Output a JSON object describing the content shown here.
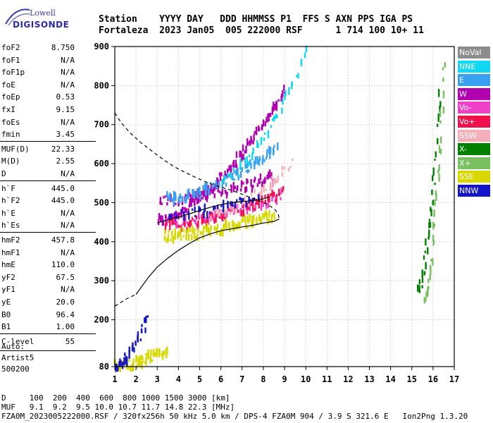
{
  "logo": {
    "line1": "Lowell",
    "line2": "DIGISONDE"
  },
  "header": {
    "labels": "Station    YYYY DAY   DDD HHMMSS P1  FFS S AXN PPS IGA PS",
    "values": "Fortaleza  2023 Jan05  005 222000 RSF      1 714 100 10+ 11"
  },
  "params": [
    {
      "label": "foF2",
      "value": "8.750"
    },
    {
      "label": "foF1",
      "value": "N/A"
    },
    {
      "label": "foF1p",
      "value": "N/A"
    },
    {
      "label": "foE",
      "value": "N/A"
    },
    {
      "label": "foEp",
      "value": "0.53"
    },
    {
      "label": "fxI",
      "value": "9.15"
    },
    {
      "label": "foEs",
      "value": "N/A"
    },
    {
      "label": "fmin",
      "value": "3.45"
    },
    {
      "label": "MUF(D)",
      "value": "22.33"
    },
    {
      "label": "M(D)",
      "value": "2.55"
    },
    {
      "label": "D",
      "value": "N/A"
    },
    {
      "label": "h`F",
      "value": "445.0"
    },
    {
      "label": "h`F2",
      "value": "445.0"
    },
    {
      "label": "h`E",
      "value": "N/A"
    },
    {
      "label": "h`Es",
      "value": "N/A"
    },
    {
      "label": "hmF2",
      "value": "457.8"
    },
    {
      "label": "hmF1",
      "value": "N/A"
    },
    {
      "label": "hmE",
      "value": "110.0"
    },
    {
      "label": "yF2",
      "value": "67.5"
    },
    {
      "label": "yF1",
      "value": "N/A"
    },
    {
      "label": "yE",
      "value": "20.0"
    },
    {
      "label": "B0",
      "value": "96.4"
    },
    {
      "label": "B1",
      "value": "1.00"
    },
    {
      "label": "C-level",
      "value": "55"
    }
  ],
  "auto": {
    "line1": "Auto:",
    "line2": "Artist5",
    "line3": "500200"
  },
  "footer": {
    "d_line": "D     100  200  400  600  800 1000 1500 3000 [km]",
    "muf_line": "MUF   9.1  9.2  9.5 10.0 10.7 11.7 14.8 22.3 [MHz]",
    "file_line": "FZA0M_2023005222000.RSF / 320fx256h 50 kHz 5.0 km / DPS-4 FZA0M 904 / 3.9 S 321.6 E   Ion2Png 1.3.20"
  },
  "legend": [
    {
      "label": "NoVal",
      "color": "#8c8c8c"
    },
    {
      "label": "NNE",
      "color": "#10d8f0"
    },
    {
      "label": "E",
      "color": "#38a0f0"
    },
    {
      "label": "W",
      "color": "#b000b0"
    },
    {
      "label": "Vo-",
      "color": "#f040c8"
    },
    {
      "label": "Vo+",
      "color": "#f0104c"
    },
    {
      "label": "SSW",
      "color": "#f4b0b8"
    },
    {
      "label": "X-",
      "color": "#008000"
    },
    {
      "label": "X+",
      "color": "#78c060"
    },
    {
      "label": "SSE",
      "color": "#d8d800"
    },
    {
      "label": "NNW",
      "color": "#1414c8"
    }
  ],
  "chart_data": {
    "type": "scatter",
    "xlim": [
      1,
      17
    ],
    "ylim": [
      80,
      900
    ],
    "x_ticks": [
      1,
      2,
      3,
      4,
      5,
      6,
      7,
      8,
      9,
      10,
      11,
      12,
      13,
      14,
      15,
      16,
      17
    ],
    "y_ticks": [
      80,
      200,
      300,
      400,
      500,
      600,
      700,
      800,
      900
    ],
    "grid": true,
    "legend_position": "right",
    "profile_solid": {
      "x": [
        2.0,
        2.6,
        3.0,
        3.5,
        4.0,
        4.5,
        5.0,
        5.5,
        6.0,
        6.5,
        7.0,
        7.5,
        8.0,
        8.5,
        8.75
      ],
      "y": [
        265,
        310,
        335,
        358,
        378,
        395,
        410,
        420,
        428,
        433,
        438,
        442,
        448,
        452,
        458
      ]
    },
    "profile_dashed_lower": {
      "x": [
        1.0,
        1.3,
        1.6,
        2.0
      ],
      "y": [
        235,
        245,
        255,
        265
      ]
    },
    "profile_dashed_upper": {
      "x": [
        1.0,
        1.3,
        1.7,
        2.2,
        2.8,
        3.3,
        3.8,
        4.3,
        4.8,
        5.3,
        5.8,
        6.3,
        6.8,
        7.3,
        7.8,
        8.2,
        8.5,
        8.7,
        8.75
      ],
      "y": [
        730,
        705,
        680,
        655,
        630,
        610,
        592,
        578,
        565,
        553,
        543,
        535,
        526,
        515,
        505,
        495,
        485,
        472,
        458
      ]
    },
    "trace_line": {
      "x": [
        3.0,
        3.5,
        4.0,
        4.5,
        5.0,
        5.5,
        6.0,
        6.5,
        7.0,
        7.5,
        8.0,
        8.3
      ],
      "y": [
        448,
        456,
        463,
        471,
        480,
        488,
        495,
        500,
        503,
        505,
        510,
        515
      ]
    },
    "echo_traces": [
      {
        "name": "W",
        "color": "#b000b0",
        "x0": 3.0,
        "x1": 9.0,
        "y0": 455,
        "y1": 790,
        "n": 120
      },
      {
        "name": "W",
        "color": "#b000b0",
        "x0": 3.1,
        "x1": 8.4,
        "y0": 505,
        "y1": 565,
        "n": 80
      },
      {
        "name": "E",
        "color": "#38a0f0",
        "x0": 3.4,
        "x1": 8.6,
        "y0": 510,
        "y1": 640,
        "n": 90
      },
      {
        "name": "NNE",
        "color": "#10d8f0",
        "x0": 6.0,
        "x1": 10.0,
        "y0": 560,
        "y1": 890,
        "n": 40
      },
      {
        "name": "Vo-",
        "color": "#f040c8",
        "x0": 3.4,
        "x1": 8.8,
        "y0": 445,
        "y1": 520,
        "n": 80
      },
      {
        "name": "Vo+",
        "color": "#f0104c",
        "x0": 3.3,
        "x1": 8.9,
        "y0": 440,
        "y1": 525,
        "n": 70
      },
      {
        "name": "SSW",
        "color": "#f4b0b8",
        "x0": 5.5,
        "x1": 9.3,
        "y0": 470,
        "y1": 600,
        "n": 40
      },
      {
        "name": "SSE",
        "color": "#d8d800",
        "x0": 3.3,
        "x1": 8.5,
        "y0": 415,
        "y1": 470,
        "n": 110
      },
      {
        "name": "NNW",
        "color": "#1414c8",
        "x0": 3.5,
        "x1": 7.8,
        "y0": 465,
        "y1": 520,
        "n": 40
      },
      {
        "name": "X-",
        "color": "#008000",
        "x0": 15.3,
        "x1": 16.3,
        "y0": 280,
        "y1": 780,
        "n": 35
      },
      {
        "name": "X+",
        "color": "#78c060",
        "x0": 15.6,
        "x1": 16.5,
        "y0": 250,
        "y1": 860,
        "n": 35
      },
      {
        "name": "SSE",
        "color": "#d8d800",
        "x0": 1.0,
        "x1": 3.4,
        "y0": 82,
        "y1": 120,
        "n": 60
      },
      {
        "name": "NNW",
        "color": "#1414c8",
        "x0": 1.0,
        "x1": 2.5,
        "y0": 82,
        "y1": 200,
        "n": 30
      }
    ]
  }
}
